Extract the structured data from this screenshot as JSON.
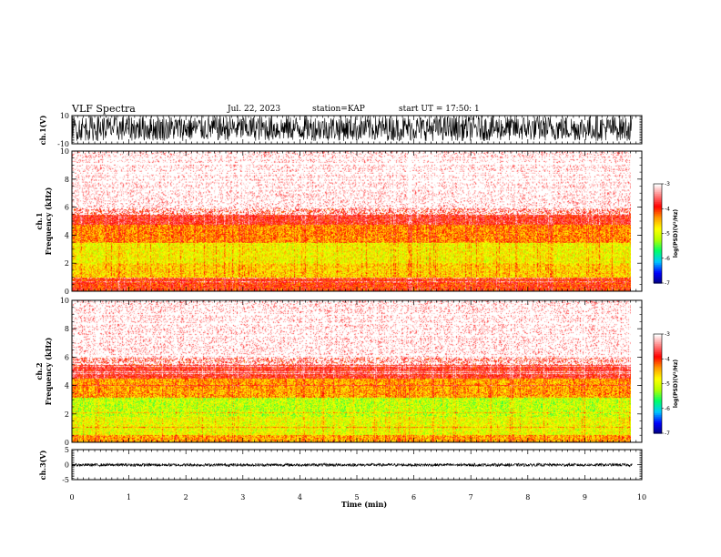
{
  "header": {
    "title": "VLF Spectra",
    "date": "Jul. 22, 2023",
    "station": "station=KAP",
    "start": "start UT = 17:50: 1"
  },
  "chart_data": [
    {
      "type": "line",
      "ylabel": "ch.1(V)",
      "ylim": [
        -10,
        10
      ],
      "yticks": [
        "10",
        "-10"
      ],
      "description_values": "dense waveform oscillating between about -8 and 10 V",
      "approx_range": [
        -8,
        10
      ]
    },
    {
      "type": "heatmap",
      "ylabel": "ch.1\nFrequency (kHz)",
      "ylabel_line1": "ch.1",
      "ylabel_line2": "Frequency (kHz)",
      "xlim": [
        0,
        10
      ],
      "ylim": [
        0,
        10
      ],
      "yticks": [
        "0",
        "2",
        "4",
        "6",
        "8",
        "10"
      ],
      "bands": [
        {
          "from_khz": 0,
          "to_khz": 1.0,
          "log_psd": -4.0
        },
        {
          "from_khz": 1.0,
          "to_khz": 2.0,
          "log_psd": -4.6
        },
        {
          "from_khz": 2.0,
          "to_khz": 3.5,
          "log_psd": -4.8
        },
        {
          "from_khz": 3.5,
          "to_khz": 4.8,
          "log_psd": -4.3
        },
        {
          "from_khz": 4.8,
          "to_khz": 6.0,
          "log_psd": -3.8
        },
        {
          "from_khz": 6.0,
          "to_khz": 10.0,
          "log_psd": -3.2
        }
      ],
      "colorbar": {
        "label": "log(PSD)(V²/Hz)",
        "range": [
          -7,
          -3
        ],
        "ticks": [
          "-3",
          "-4",
          "-5",
          "-6",
          "-7"
        ]
      }
    },
    {
      "type": "heatmap",
      "ylabel_line1": "ch.2",
      "ylabel_line2": "Frequency (kHz)",
      "xlim": [
        0,
        10
      ],
      "ylim": [
        0,
        10
      ],
      "yticks": [
        "0",
        "2",
        "4",
        "6",
        "8",
        "10"
      ],
      "bands": [
        {
          "from_khz": 0,
          "to_khz": 0.5,
          "log_psd": -4.4
        },
        {
          "from_khz": 0.5,
          "to_khz": 1.8,
          "log_psd": -4.9
        },
        {
          "from_khz": 1.8,
          "to_khz": 3.2,
          "log_psd": -5.1
        },
        {
          "from_khz": 3.2,
          "to_khz": 4.5,
          "log_psd": -4.4
        },
        {
          "from_khz": 4.5,
          "to_khz": 6.0,
          "log_psd": -3.8
        },
        {
          "from_khz": 6.0,
          "to_khz": 10.0,
          "log_psd": -3.2
        }
      ],
      "colorbar": {
        "label": "log(PSD)(V²/Hz)",
        "range": [
          -7,
          -3
        ],
        "ticks": [
          "-3",
          "-4",
          "-5",
          "-6",
          "-7"
        ]
      }
    },
    {
      "type": "line",
      "ylabel": "ch.3(V)",
      "ylim": [
        -5,
        5
      ],
      "yticks": [
        "5",
        "0",
        "-5"
      ],
      "approx_range": [
        -0.6,
        0.4
      ]
    }
  ],
  "x_axis": {
    "label": "Time (min)",
    "xlim": [
      0,
      10
    ],
    "ticks": [
      "0",
      "1",
      "2",
      "3",
      "4",
      "5",
      "6",
      "7",
      "8",
      "9",
      "10"
    ],
    "data_end": 9.83
  },
  "colors": {
    "colormap": [
      "#00007f",
      "#0000ff",
      "#00c8ff",
      "#00ff66",
      "#b4ff00",
      "#ffff00",
      "#ff9900",
      "#ff0000",
      "#ff8080",
      "#ffffff"
    ]
  }
}
